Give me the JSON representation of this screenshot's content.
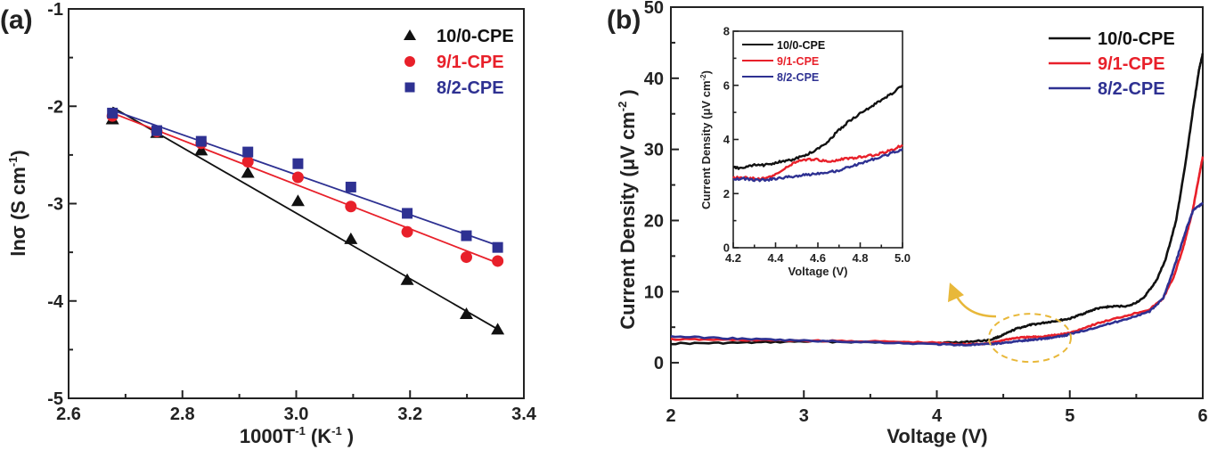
{
  "figure": {
    "colors": {
      "series_10_0": "#111111",
      "series_9_1": "#e8202a",
      "series_8_2": "#2e3192",
      "annotation": "#e8b83a",
      "axis": "#222222"
    }
  },
  "chart_data": [
    {
      "panel": "(a)",
      "type": "scatter",
      "title": "",
      "xlabel": "1000T",
      "xlabel_sup": "-1",
      "xlabel_unit_pre": " (K",
      "xlabel_unit_sup": "-1",
      "xlabel_unit_post": " )",
      "ylabel": "lnσ (S cm",
      "ylabel_sup": "-1",
      "ylabel_post": ")",
      "xlim": [
        2.6,
        3.4
      ],
      "ylim": [
        -5,
        -1
      ],
      "x_ticks": [
        "2.6",
        "2.8",
        "3.0",
        "3.2",
        "3.4"
      ],
      "x_tick_values": [
        2.6,
        2.8,
        3.0,
        3.2,
        3.4
      ],
      "x_minor_tick_values": [
        2.7,
        2.9,
        3.1,
        3.3
      ],
      "y_ticks": [
        "-1",
        "-2",
        "-3",
        "-4",
        "-5"
      ],
      "y_tick_values": [
        -1,
        -2,
        -3,
        -4,
        -5
      ],
      "y_minor_tick_values": [
        -1.5,
        -2.5,
        -3.5,
        -4.5
      ],
      "grid": false,
      "legend_position": "top-right",
      "x": [
        2.677,
        2.755,
        2.833,
        2.915,
        3.003,
        3.096,
        3.195,
        3.299,
        3.354
      ],
      "series": [
        {
          "name": "10/0-CPE",
          "marker": "triangle",
          "color": "#111111",
          "values": [
            -2.13,
            -2.27,
            -2.45,
            -2.68,
            -2.97,
            -3.36,
            -3.78,
            -4.13,
            -4.29
          ],
          "fit_line": {
            "x": [
              2.677,
              3.354
            ],
            "y": [
              -2.01,
              -4.29
            ]
          }
        },
        {
          "name": "9/1-CPE",
          "marker": "circle",
          "color": "#e8202a",
          "values": [
            -2.1,
            -2.26,
            -2.38,
            -2.57,
            -2.73,
            -3.03,
            -3.29,
            -3.55,
            -3.59
          ],
          "fit_line": {
            "x": [
              2.677,
              3.354
            ],
            "y": [
              -2.07,
              -3.61
            ]
          }
        },
        {
          "name": "8/2-CPE",
          "marker": "square",
          "color": "#2e3192",
          "values": [
            -2.07,
            -2.25,
            -2.36,
            -2.47,
            -2.59,
            -2.83,
            -3.1,
            -3.33,
            -3.45
          ],
          "fit_line": {
            "x": [
              2.677,
              3.354
            ],
            "y": [
              -2.04,
              -3.43
            ]
          }
        }
      ]
    },
    {
      "panel": "(b)",
      "type": "line",
      "title": "",
      "xlabel": "Voltage (V)",
      "ylabel": "Current Density (μV cm",
      "ylabel_sup": "-2",
      "ylabel_post": " )",
      "xlim": [
        2,
        6
      ],
      "ylim": [
        -5,
        50
      ],
      "x_ticks": [
        "2",
        "3",
        "4",
        "5",
        "6"
      ],
      "x_tick_values": [
        2,
        3,
        4,
        5,
        6
      ],
      "x_minor_tick_values": [
        2.5,
        3.5,
        4.5,
        5.5
      ],
      "y_ticks": [
        "0",
        "10",
        "20",
        "30",
        "40",
        "50"
      ],
      "y_tick_values": [
        0,
        10,
        20,
        30,
        40,
        50
      ],
      "y_minor_tick_values": [
        5,
        15,
        25,
        35,
        45
      ],
      "grid": false,
      "legend_position": "top-right",
      "series": [
        {
          "name": "10/0-CPE",
          "color": "#111111",
          "x": [
            2.0,
            2.5,
            3.0,
            3.5,
            4.0,
            4.2,
            4.4,
            4.5,
            4.6,
            4.7,
            4.8,
            4.9,
            5.0,
            5.1,
            5.2,
            5.3,
            5.45,
            5.55,
            5.65,
            5.72,
            5.8,
            5.87,
            5.93,
            5.97,
            6.0
          ],
          "y": [
            2.7,
            2.8,
            3.0,
            2.9,
            2.8,
            2.9,
            3.2,
            3.9,
            4.8,
            5.3,
            5.6,
            5.9,
            6.2,
            6.9,
            7.6,
            7.9,
            8.0,
            9.0,
            11.5,
            14.5,
            20.0,
            28.0,
            36.0,
            41.0,
            43.5
          ]
        },
        {
          "name": "9/1-CPE",
          "color": "#e8202a",
          "x": [
            2.0,
            2.5,
            3.0,
            3.5,
            4.0,
            4.2,
            4.4,
            4.5,
            4.6,
            4.7,
            4.8,
            4.9,
            5.0,
            5.2,
            5.4,
            5.6,
            5.7,
            5.78,
            5.85,
            5.92,
            5.97,
            6.0
          ],
          "y": [
            3.3,
            3.2,
            3.1,
            3.0,
            2.8,
            2.6,
            2.7,
            3.2,
            3.5,
            3.6,
            3.7,
            3.9,
            4.2,
            5.5,
            6.5,
            7.5,
            9.0,
            12.0,
            16.0,
            21.0,
            26.0,
            29.0
          ]
        },
        {
          "name": "8/2-CPE",
          "color": "#2e3192",
          "x": [
            2.0,
            2.5,
            3.0,
            3.5,
            4.0,
            4.2,
            4.4,
            4.5,
            4.6,
            4.7,
            4.8,
            4.9,
            5.0,
            5.2,
            5.4,
            5.6,
            5.7,
            5.76,
            5.82,
            5.88,
            5.93,
            5.97,
            6.0
          ],
          "y": [
            3.7,
            3.4,
            3.1,
            2.9,
            2.6,
            2.5,
            2.6,
            2.8,
            3.0,
            3.2,
            3.4,
            3.6,
            4.0,
            5.0,
            6.0,
            7.2,
            9.0,
            12.0,
            15.5,
            19.0,
            21.5,
            22.0,
            22.5
          ]
        }
      ],
      "annotation": {
        "type": "dashed-ellipse-with-arrow",
        "center_x": 4.7,
        "center_y": 3.5,
        "points_to": "inset"
      }
    },
    {
      "panel": "(b) inset",
      "type": "line",
      "title": "",
      "xlabel": "Voltage (V)",
      "ylabel": "Current Density (μV cm",
      "ylabel_sup": "-2",
      "ylabel_post": ")",
      "xlim": [
        4.2,
        5.0
      ],
      "ylim": [
        0,
        8
      ],
      "x_ticks": [
        "4.2",
        "4.4",
        "4.6",
        "4.8",
        "5.0"
      ],
      "x_tick_values": [
        4.2,
        4.4,
        4.6,
        4.8,
        5.0
      ],
      "x_minor_tick_values": [
        4.3,
        4.5,
        4.7,
        4.9
      ],
      "y_ticks": [
        "0",
        "2",
        "4",
        "6",
        "8"
      ],
      "y_tick_values": [
        0,
        2,
        4,
        6,
        8
      ],
      "y_minor_tick_values": [
        1,
        3,
        5,
        7
      ],
      "grid": false,
      "legend_position": "top-left",
      "series": [
        {
          "name": "10/0-CPE",
          "color": "#111111",
          "x": [
            4.2,
            4.25,
            4.3,
            4.35,
            4.4,
            4.45,
            4.5,
            4.55,
            4.6,
            4.65,
            4.7,
            4.75,
            4.8,
            4.85,
            4.9,
            4.95,
            5.0
          ],
          "y": [
            2.95,
            2.95,
            3.05,
            3.05,
            3.15,
            3.2,
            3.3,
            3.45,
            3.65,
            3.95,
            4.35,
            4.7,
            4.95,
            5.2,
            5.45,
            5.7,
            6.0
          ]
        },
        {
          "name": "9/1-CPE",
          "color": "#e8202a",
          "x": [
            4.2,
            4.25,
            4.3,
            4.35,
            4.4,
            4.45,
            4.5,
            4.55,
            4.6,
            4.65,
            4.7,
            4.75,
            4.8,
            4.85,
            4.9,
            4.95,
            5.0
          ],
          "y": [
            2.6,
            2.6,
            2.55,
            2.55,
            2.7,
            2.95,
            3.2,
            3.25,
            3.25,
            3.2,
            3.25,
            3.3,
            3.35,
            3.4,
            3.5,
            3.6,
            3.8
          ]
        },
        {
          "name": "8/2-CPE",
          "color": "#2e3192",
          "x": [
            4.2,
            4.25,
            4.3,
            4.35,
            4.4,
            4.45,
            4.5,
            4.55,
            4.6,
            4.65,
            4.7,
            4.75,
            4.8,
            4.85,
            4.9,
            4.95,
            5.0
          ],
          "y": [
            2.55,
            2.55,
            2.5,
            2.5,
            2.55,
            2.6,
            2.65,
            2.7,
            2.75,
            2.8,
            2.85,
            3.0,
            3.1,
            3.25,
            3.35,
            3.5,
            3.65
          ]
        }
      ]
    }
  ]
}
